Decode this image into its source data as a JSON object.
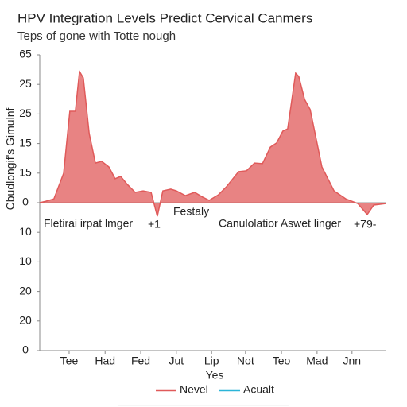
{
  "chart_data": {
    "type": "area",
    "title": "HPV Integration Levels Predict Cervical Canmers",
    "subtitle": "Teps of gone with Totte nough",
    "y_label": "Cbudlongif's Gimulnf",
    "x_label": "Yes",
    "x": [
      0,
      1.8,
      4.1,
      6.9,
      8.7,
      10.3,
      11.5,
      12.6,
      14.3,
      16.1,
      17.9,
      20,
      21.8,
      23.4,
      25.3,
      27.6,
      29.9,
      32.2,
      34,
      35.6,
      37.9,
      39.5,
      42.1,
      44.8,
      47.1,
      49,
      51.7,
      54,
      57.5,
      59.8,
      62.1,
      64.4,
      66.7,
      68.5,
      70.3,
      71.7,
      74,
      74.9,
      76.6,
      78.2,
      81.6,
      85.1,
      88.5,
      92,
      94.7,
      96.6,
      100
    ],
    "series": [
      {
        "name": "Nevel",
        "color": "#e05a5a",
        "values": [
          0,
          0.5,
          1.3,
          9.9,
          30.9,
          30.9,
          44.4,
          42.2,
          23.4,
          13.4,
          14,
          12.1,
          8.1,
          8.9,
          6.2,
          3.5,
          4,
          3.5,
          -4.6,
          4,
          4.6,
          4,
          2.4,
          3.5,
          1.9,
          0.8,
          2.7,
          5.4,
          10.5,
          10.8,
          13.4,
          13.2,
          18.8,
          20.2,
          24.2,
          25,
          43.8,
          42.7,
          34.9,
          31.5,
          12.1,
          4,
          1.3,
          -0.3,
          -4,
          -0.8,
          -0.3
        ]
      },
      {
        "name": "Acualt",
        "color": "#2bb5d8",
        "values": [
          null,
          null,
          null,
          null,
          null,
          null,
          null,
          null,
          null,
          null,
          null,
          null,
          null,
          null,
          null,
          null,
          null,
          null,
          null,
          null,
          null,
          null,
          null,
          null,
          null,
          null,
          null,
          null,
          null,
          null,
          null,
          null,
          null,
          null,
          null,
          null,
          null,
          null,
          null,
          null,
          null,
          null,
          null,
          null,
          null,
          null,
          null
        ]
      }
    ],
    "xlim": [
      0,
      100
    ],
    "xticks": [
      {
        "value": 8.5,
        "label": "Tee"
      },
      {
        "value": 18.9,
        "label": "Had"
      },
      {
        "value": 29.2,
        "label": "Fed"
      },
      {
        "value": 39.5,
        "label": "Jut"
      },
      {
        "value": 49.7,
        "label": "Lip"
      },
      {
        "value": 59.5,
        "label": "Not"
      },
      {
        "value": 69.9,
        "label": "Teo"
      },
      {
        "value": 80.2,
        "label": "Mad"
      },
      {
        "value": 90.3,
        "label": "Jnn"
      }
    ],
    "ylim": [
      -50,
      50
    ],
    "yticks": [
      {
        "value": 50,
        "label": "65"
      },
      {
        "value": 40,
        "label": "25"
      },
      {
        "value": 30,
        "label": "25"
      },
      {
        "value": 20,
        "label": "15"
      },
      {
        "value": 10,
        "label": "15"
      },
      0,
      {
        "value": -10,
        "label": "10"
      },
      {
        "value": -20,
        "label": "10"
      },
      {
        "value": -30,
        "label": "20"
      },
      {
        "value": -40,
        "label": "20"
      },
      {
        "value": -50,
        "label": "0"
      }
    ],
    "annotations": [
      "Fletirai irpat lmger",
      "+1",
      "Festaly",
      "Canulolatior Aswet linger",
      "+79-"
    ]
  }
}
